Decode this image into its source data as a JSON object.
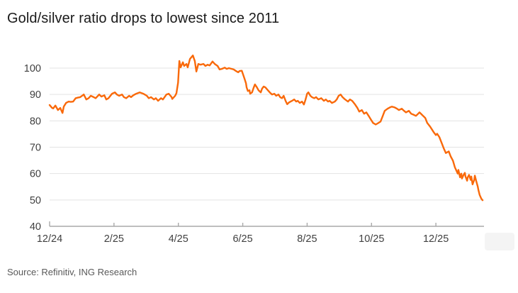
{
  "page": {
    "title": "Gold/silver ratio drops to lowest since 2011",
    "source": "Source: Refinitiv, ING Research"
  },
  "colors": {
    "line": "#f9690a",
    "title_text": "#1a1a1a",
    "tick_text": "#404040",
    "source_text": "#595959",
    "gridline": "#e3e3e3",
    "axis": "#a9a9a9",
    "background": "#ffffff"
  },
  "chart_data": {
    "type": "line",
    "title": "Gold/silver ratio drops to lowest since 2011",
    "xlabel": "",
    "ylabel": "",
    "x_unit": "months since 12/2024",
    "xlim": [
      0,
      13.45
    ],
    "ylim": [
      40,
      107.5
    ],
    "y_ticks": [
      40,
      50,
      60,
      70,
      80,
      90,
      100
    ],
    "x_ticks": [
      {
        "pos": 0,
        "label": "12/24"
      },
      {
        "pos": 2,
        "label": "2/25"
      },
      {
        "pos": 4,
        "label": "4/25"
      },
      {
        "pos": 6,
        "label": "6/25"
      },
      {
        "pos": 8,
        "label": "8/25"
      },
      {
        "pos": 10,
        "label": "10/25"
      },
      {
        "pos": 12,
        "label": "12/25"
      }
    ],
    "grid": "horizontal",
    "legend": "none",
    "series": [
      {
        "name": "Gold/silver ratio",
        "peak_value": 104.8,
        "end_value": 49.9,
        "points": [
          [
            0.0,
            86.0
          ],
          [
            0.07,
            85.0
          ],
          [
            0.11,
            84.7
          ],
          [
            0.18,
            85.8
          ],
          [
            0.26,
            84.1
          ],
          [
            0.33,
            84.9
          ],
          [
            0.4,
            83.0
          ],
          [
            0.44,
            85.4
          ],
          [
            0.51,
            86.8
          ],
          [
            0.59,
            87.3
          ],
          [
            0.66,
            87.2
          ],
          [
            0.73,
            87.3
          ],
          [
            0.81,
            88.6
          ],
          [
            0.88,
            88.8
          ],
          [
            0.95,
            89.0
          ],
          [
            1.03,
            89.7
          ],
          [
            1.06,
            90.0
          ],
          [
            1.14,
            88.1
          ],
          [
            1.21,
            88.6
          ],
          [
            1.28,
            89.5
          ],
          [
            1.37,
            89.0
          ],
          [
            1.43,
            88.6
          ],
          [
            1.54,
            90.0
          ],
          [
            1.61,
            89.2
          ],
          [
            1.7,
            89.7
          ],
          [
            1.76,
            88.1
          ],
          [
            1.83,
            88.6
          ],
          [
            1.94,
            90.3
          ],
          [
            2.03,
            90.8
          ],
          [
            2.09,
            90.0
          ],
          [
            2.16,
            89.5
          ],
          [
            2.25,
            90.0
          ],
          [
            2.31,
            89.0
          ],
          [
            2.38,
            88.6
          ],
          [
            2.47,
            89.5
          ],
          [
            2.53,
            89.0
          ],
          [
            2.6,
            89.7
          ],
          [
            2.69,
            90.3
          ],
          [
            2.8,
            90.8
          ],
          [
            2.91,
            90.3
          ],
          [
            3.02,
            89.5
          ],
          [
            3.08,
            88.6
          ],
          [
            3.15,
            89.0
          ],
          [
            3.24,
            88.1
          ],
          [
            3.3,
            88.6
          ],
          [
            3.37,
            87.6
          ],
          [
            3.46,
            88.6
          ],
          [
            3.52,
            88.1
          ],
          [
            3.63,
            90.0
          ],
          [
            3.7,
            90.3
          ],
          [
            3.79,
            89.0
          ],
          [
            3.81,
            88.3
          ],
          [
            3.9,
            89.5
          ],
          [
            3.94,
            90.5
          ],
          [
            3.99,
            94.5
          ],
          [
            4.03,
            102.7
          ],
          [
            4.07,
            100.3
          ],
          [
            4.14,
            102.2
          ],
          [
            4.18,
            100.8
          ],
          [
            4.25,
            101.6
          ],
          [
            4.29,
            100.3
          ],
          [
            4.36,
            103.5
          ],
          [
            4.45,
            104.8
          ],
          [
            4.51,
            102.7
          ],
          [
            4.56,
            98.7
          ],
          [
            4.62,
            101.6
          ],
          [
            4.69,
            101.3
          ],
          [
            4.78,
            101.6
          ],
          [
            4.84,
            100.8
          ],
          [
            4.91,
            101.3
          ],
          [
            4.97,
            101.0
          ],
          [
            5.06,
            102.5
          ],
          [
            5.13,
            101.6
          ],
          [
            5.22,
            100.8
          ],
          [
            5.28,
            99.5
          ],
          [
            5.35,
            99.7
          ],
          [
            5.44,
            100.2
          ],
          [
            5.5,
            99.7
          ],
          [
            5.57,
            100.0
          ],
          [
            5.66,
            99.7
          ],
          [
            5.72,
            99.5
          ],
          [
            5.79,
            98.9
          ],
          [
            5.86,
            98.4
          ],
          [
            5.9,
            98.9
          ],
          [
            5.97,
            99.0
          ],
          [
            6.01,
            97.6
          ],
          [
            6.05,
            96.2
          ],
          [
            6.1,
            94.3
          ],
          [
            6.12,
            92.7
          ],
          [
            6.16,
            91.3
          ],
          [
            6.21,
            91.6
          ],
          [
            6.23,
            90.3
          ],
          [
            6.29,
            90.8
          ],
          [
            6.34,
            92.6
          ],
          [
            6.38,
            93.8
          ],
          [
            6.43,
            92.9
          ],
          [
            6.49,
            91.6
          ],
          [
            6.56,
            90.8
          ],
          [
            6.6,
            92.2
          ],
          [
            6.65,
            93.0
          ],
          [
            6.7,
            92.7
          ],
          [
            6.78,
            91.6
          ],
          [
            6.84,
            90.8
          ],
          [
            6.91,
            90.0
          ],
          [
            6.98,
            90.3
          ],
          [
            7.04,
            89.5
          ],
          [
            7.11,
            90.0
          ],
          [
            7.16,
            89.0
          ],
          [
            7.22,
            88.6
          ],
          [
            7.27,
            89.5
          ],
          [
            7.33,
            87.6
          ],
          [
            7.38,
            86.3
          ],
          [
            7.44,
            87.0
          ],
          [
            7.53,
            87.6
          ],
          [
            7.6,
            88.1
          ],
          [
            7.66,
            87.3
          ],
          [
            7.71,
            87.6
          ],
          [
            7.77,
            86.8
          ],
          [
            7.84,
            87.3
          ],
          [
            7.9,
            86.2
          ],
          [
            7.95,
            88.0
          ],
          [
            8.0,
            90.3
          ],
          [
            8.04,
            90.8
          ],
          [
            8.1,
            89.5
          ],
          [
            8.15,
            89.0
          ],
          [
            8.22,
            88.6
          ],
          [
            8.28,
            89.0
          ],
          [
            8.35,
            88.1
          ],
          [
            8.44,
            88.6
          ],
          [
            8.52,
            87.6
          ],
          [
            8.58,
            88.1
          ],
          [
            8.65,
            87.3
          ],
          [
            8.7,
            87.6
          ],
          [
            8.77,
            86.8
          ],
          [
            8.86,
            87.3
          ],
          [
            8.92,
            88.1
          ],
          [
            8.98,
            89.5
          ],
          [
            9.04,
            90.0
          ],
          [
            9.1,
            89.0
          ],
          [
            9.18,
            88.1
          ],
          [
            9.27,
            87.3
          ],
          [
            9.33,
            88.1
          ],
          [
            9.4,
            87.6
          ],
          [
            9.49,
            86.2
          ],
          [
            9.56,
            84.9
          ],
          [
            9.62,
            83.5
          ],
          [
            9.7,
            84.1
          ],
          [
            9.77,
            82.7
          ],
          [
            9.84,
            83.2
          ],
          [
            9.91,
            81.9
          ],
          [
            9.98,
            80.5
          ],
          [
            10.05,
            79.2
          ],
          [
            10.13,
            78.6
          ],
          [
            10.19,
            79.0
          ],
          [
            10.28,
            79.7
          ],
          [
            10.35,
            81.9
          ],
          [
            10.41,
            83.8
          ],
          [
            10.5,
            84.6
          ],
          [
            10.57,
            85.1
          ],
          [
            10.63,
            85.4
          ],
          [
            10.72,
            85.1
          ],
          [
            10.79,
            84.6
          ],
          [
            10.85,
            84.1
          ],
          [
            10.94,
            84.6
          ],
          [
            11.01,
            83.8
          ],
          [
            11.07,
            83.2
          ],
          [
            11.16,
            83.8
          ],
          [
            11.23,
            82.7
          ],
          [
            11.29,
            82.4
          ],
          [
            11.38,
            81.9
          ],
          [
            11.45,
            82.7
          ],
          [
            11.49,
            83.2
          ],
          [
            11.56,
            82.4
          ],
          [
            11.6,
            81.9
          ],
          [
            11.67,
            81.1
          ],
          [
            11.73,
            79.2
          ],
          [
            11.82,
            77.8
          ],
          [
            11.89,
            76.5
          ],
          [
            11.93,
            75.7
          ],
          [
            12.0,
            74.6
          ],
          [
            12.04,
            75.1
          ],
          [
            12.11,
            73.8
          ],
          [
            12.18,
            71.6
          ],
          [
            12.24,
            69.7
          ],
          [
            12.31,
            67.8
          ],
          [
            12.4,
            68.4
          ],
          [
            12.46,
            66.5
          ],
          [
            12.53,
            64.9
          ],
          [
            12.59,
            62.4
          ],
          [
            12.68,
            60.0
          ],
          [
            12.7,
            61.4
          ],
          [
            12.75,
            58.6
          ],
          [
            12.79,
            60.0
          ],
          [
            12.81,
            58.1
          ],
          [
            12.86,
            59.5
          ],
          [
            12.9,
            60.3
          ],
          [
            12.92,
            58.9
          ],
          [
            12.97,
            57.3
          ],
          [
            12.99,
            58.6
          ],
          [
            13.03,
            59.5
          ],
          [
            13.08,
            57.6
          ],
          [
            13.1,
            58.9
          ],
          [
            13.14,
            55.9
          ],
          [
            13.19,
            57.6
          ],
          [
            13.21,
            59.2
          ],
          [
            13.25,
            57.3
          ],
          [
            13.3,
            55.1
          ],
          [
            13.32,
            53.8
          ],
          [
            13.36,
            51.9
          ],
          [
            13.41,
            50.5
          ],
          [
            13.45,
            49.9
          ]
        ]
      }
    ]
  }
}
